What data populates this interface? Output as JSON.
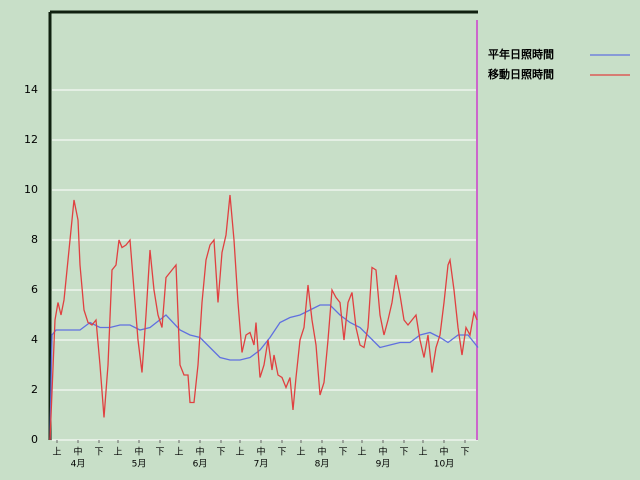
{
  "chart_data": {
    "type": "line",
    "xlim": [
      0,
      214
    ],
    "ylim": [
      0,
      17.12
    ],
    "yticks": [
      0,
      2,
      4,
      6,
      8,
      10,
      12,
      14
    ],
    "grid": true,
    "legend": "top-right",
    "xticks": [
      {
        "value": 3.5,
        "label": "上"
      },
      {
        "value": 14,
        "label": "中"
      },
      {
        "value": 24.5,
        "label": "下"
      },
      {
        "value": 34,
        "label": "上"
      },
      {
        "value": 44.5,
        "label": "中"
      },
      {
        "value": 55,
        "label": "下"
      },
      {
        "value": 64.5,
        "label": "上"
      },
      {
        "value": 75,
        "label": "中"
      },
      {
        "value": 85.5,
        "label": "下"
      },
      {
        "value": 95,
        "label": "上"
      },
      {
        "value": 105.5,
        "label": "中"
      },
      {
        "value": 116,
        "label": "下"
      },
      {
        "value": 125.5,
        "label": "上"
      },
      {
        "value": 136,
        "label": "中"
      },
      {
        "value": 146.5,
        "label": "下"
      },
      {
        "value": 156,
        "label": "上"
      },
      {
        "value": 166.5,
        "label": "中"
      },
      {
        "value": 177,
        "label": "下"
      },
      {
        "value": 186.5,
        "label": "上"
      },
      {
        "value": 197,
        "label": "中"
      },
      {
        "value": 207.5,
        "label": "下"
      }
    ],
    "month_labels": [
      {
        "value": 14,
        "label": "4月"
      },
      {
        "value": 44.5,
        "label": "5月"
      },
      {
        "value": 75,
        "label": "6月"
      },
      {
        "value": 105.5,
        "label": "7月"
      },
      {
        "value": 136,
        "label": "8月"
      },
      {
        "value": 166.5,
        "label": "9月"
      },
      {
        "value": 197,
        "label": "10月"
      }
    ],
    "series": [
      {
        "name": "平年日照時間",
        "color": "#6070e0",
        "x": [
          0,
          1,
          3,
          15,
          20,
          25,
          30,
          35,
          40,
          45,
          50,
          58,
          65,
          70,
          75,
          80,
          85,
          90,
          95,
          100,
          105,
          110,
          115,
          120,
          125,
          130,
          135,
          140,
          145,
          150,
          155,
          160,
          165,
          170,
          175,
          180,
          185,
          190,
          195,
          199,
          204,
          209,
          214
        ],
        "values": [
          0,
          4.2,
          4.4,
          4.4,
          4.7,
          4.5,
          4.5,
          4.6,
          4.6,
          4.4,
          4.5,
          5,
          4.4,
          4.2,
          4.1,
          3.7,
          3.3,
          3.2,
          3.2,
          3.3,
          3.6,
          4.1,
          4.7,
          4.9,
          5,
          5.2,
          5.4,
          5.4,
          5,
          4.7,
          4.5,
          4.1,
          3.7,
          3.8,
          3.9,
          3.9,
          4.2,
          4.3,
          4.1,
          3.9,
          4.2,
          4.2,
          3.7
        ]
      },
      {
        "name": "移動日照時間",
        "color": "#e04040",
        "x": [
          0,
          2.5,
          4,
          5.5,
          7,
          8.5,
          10,
          12,
          14,
          15,
          17,
          19,
          21,
          23,
          25,
          27,
          29,
          31,
          33,
          34.5,
          36,
          38,
          40,
          42,
          44,
          46,
          48,
          50,
          52,
          54,
          56,
          58,
          60,
          63,
          65,
          67,
          69,
          70,
          72,
          74,
          76,
          78,
          80,
          82,
          84,
          86,
          88,
          90,
          92,
          94,
          96,
          98,
          100,
          102,
          103,
          105,
          107,
          109,
          111,
          112,
          114,
          116,
          118,
          120,
          121.5,
          123,
          125,
          127,
          129,
          131,
          133,
          134,
          135,
          137,
          139,
          141,
          143,
          145,
          147,
          149,
          151,
          153,
          155,
          157,
          159,
          161,
          163,
          165,
          167,
          169,
          171,
          173,
          175,
          177,
          179,
          181,
          183,
          185,
          187,
          189,
          191,
          193,
          195,
          197,
          199,
          200,
          202,
          204,
          206,
          208,
          210,
          212,
          213.5
        ],
        "values": [
          0,
          4.8,
          5.5,
          5,
          5.6,
          6.8,
          8,
          9.6,
          8.8,
          7,
          5.2,
          4.7,
          4.6,
          4.8,
          3,
          0.9,
          3,
          6.8,
          7,
          8,
          7.7,
          7.8,
          8,
          6,
          4,
          2.7,
          5,
          7.6,
          6,
          5,
          4.5,
          6.5,
          6.7,
          7,
          3,
          2.6,
          2.6,
          1.5,
          1.5,
          3,
          5.5,
          7.2,
          7.8,
          8,
          5.5,
          7.5,
          8.2,
          9.8,
          8,
          5.5,
          3.5,
          4.2,
          4.3,
          3.8,
          4.7,
          2.5,
          3,
          4,
          2.8,
          3.4,
          2.6,
          2.5,
          2.1,
          2.5,
          1.2,
          2.5,
          4,
          4.5,
          6.2,
          4.8,
          3.8,
          2.8,
          1.8,
          2.3,
          4,
          6,
          5.7,
          5.5,
          4,
          5.5,
          5.9,
          4.5,
          3.8,
          3.7,
          4.5,
          6.9,
          6.8,
          5,
          4.2,
          4.8,
          5.5,
          6.6,
          5.8,
          4.8,
          4.6,
          4.8,
          5,
          4,
          3.3,
          4.2,
          2.7,
          3.7,
          4.2,
          5.5,
          7,
          7.2,
          6,
          4.5,
          3.4,
          4.5,
          4.2,
          5.1,
          4.8
        ]
      }
    ]
  }
}
